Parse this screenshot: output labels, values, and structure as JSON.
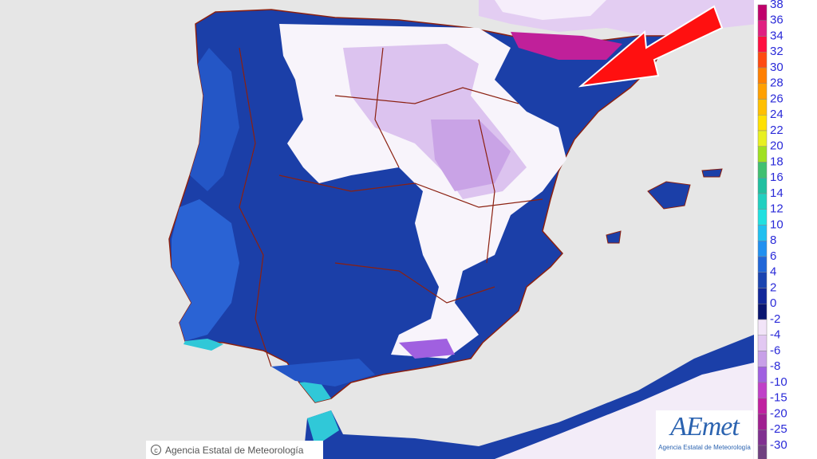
{
  "legend": {
    "stops": [
      {
        "value": 38,
        "color": "#c0006a"
      },
      {
        "value": 36,
        "color": "#e02080"
      },
      {
        "value": 34,
        "color": "#ff1040"
      },
      {
        "value": 32,
        "color": "#ff4a10"
      },
      {
        "value": 30,
        "color": "#ff7f00"
      },
      {
        "value": 28,
        "color": "#ffa000"
      },
      {
        "value": 26,
        "color": "#ffc000"
      },
      {
        "value": 24,
        "color": "#ffe000"
      },
      {
        "value": 22,
        "color": "#e8f020"
      },
      {
        "value": 20,
        "color": "#a0e020"
      },
      {
        "value": 18,
        "color": "#40c070"
      },
      {
        "value": 16,
        "color": "#20c0a0"
      },
      {
        "value": 14,
        "color": "#20d0c0"
      },
      {
        "value": 12,
        "color": "#20e0e0"
      },
      {
        "value": 10,
        "color": "#20c0f0"
      },
      {
        "value": 8,
        "color": "#2090f0"
      },
      {
        "value": 6,
        "color": "#2066d8"
      },
      {
        "value": 4,
        "color": "#1a44b0"
      },
      {
        "value": 2,
        "color": "#12289a"
      },
      {
        "value": 0,
        "color": "#0a1670"
      },
      {
        "value": -2,
        "color": "#f2e4f8"
      },
      {
        "value": -4,
        "color": "#e2c8f2"
      },
      {
        "value": -6,
        "color": "#c8a0e8"
      },
      {
        "value": -8,
        "color": "#a060e0"
      },
      {
        "value": -10,
        "color": "#c040c8"
      },
      {
        "value": -15,
        "color": "#c020a0"
      },
      {
        "value": -20,
        "color": "#a02090"
      },
      {
        "value": -25,
        "color": "#803090"
      },
      {
        "value": -30,
        "color": "#704080"
      }
    ]
  },
  "footer": {
    "copyright": "Agencia Estatal de Meteorología"
  },
  "logo": {
    "name": "AEmet",
    "subtitle": "Agencia Estatal de Meteorología"
  }
}
